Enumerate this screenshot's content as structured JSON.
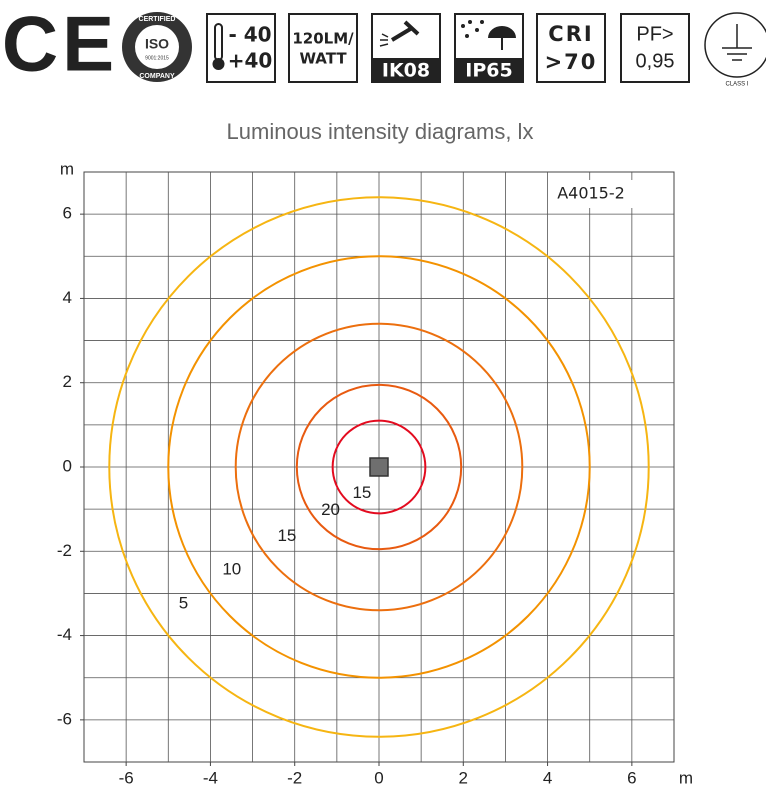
{
  "header": {
    "badges": {
      "ce": "CE",
      "iso": {
        "top": "CERTIFIED",
        "mark": "ISO",
        "standard": "9001:2015",
        "bottom": "COMPANY"
      },
      "temperature": {
        "min": "- 40",
        "max": "+40"
      },
      "efficacy": [
        "120LM/",
        "WATT"
      ],
      "ik": "IK08",
      "ip": "IP65",
      "cri": [
        "CRI",
        ">70"
      ],
      "pf": [
        "PF>",
        "0,95"
      ],
      "protection_class": "CLASS I"
    }
  },
  "chart_data": {
    "type": "isolux",
    "title": "Luminous intensity diagrams, lx",
    "model": "A4015-2",
    "x_label": "m",
    "y_label": "m",
    "xlim": [
      -7,
      7
    ],
    "ylim": [
      -7,
      7
    ],
    "xticks": [
      -6,
      -4,
      -2,
      0,
      2,
      4,
      6
    ],
    "yticks": [
      -6,
      -4,
      -2,
      0,
      2,
      4,
      6
    ],
    "grid": true,
    "grid_step": 1,
    "series": [
      {
        "name": "5",
        "color": "#f6b512",
        "values": [
          6.4
        ]
      },
      {
        "name": "10",
        "color": "#f39200",
        "values": [
          5.0
        ]
      },
      {
        "name": "15",
        "color": "#ec6f0e",
        "values": [
          3.4
        ]
      },
      {
        "name": "20",
        "color": "#e85a10",
        "values": [
          1.95
        ]
      },
      {
        "name": "15",
        "color": "#e30b1f",
        "values": [
          1.1
        ]
      }
    ]
  }
}
